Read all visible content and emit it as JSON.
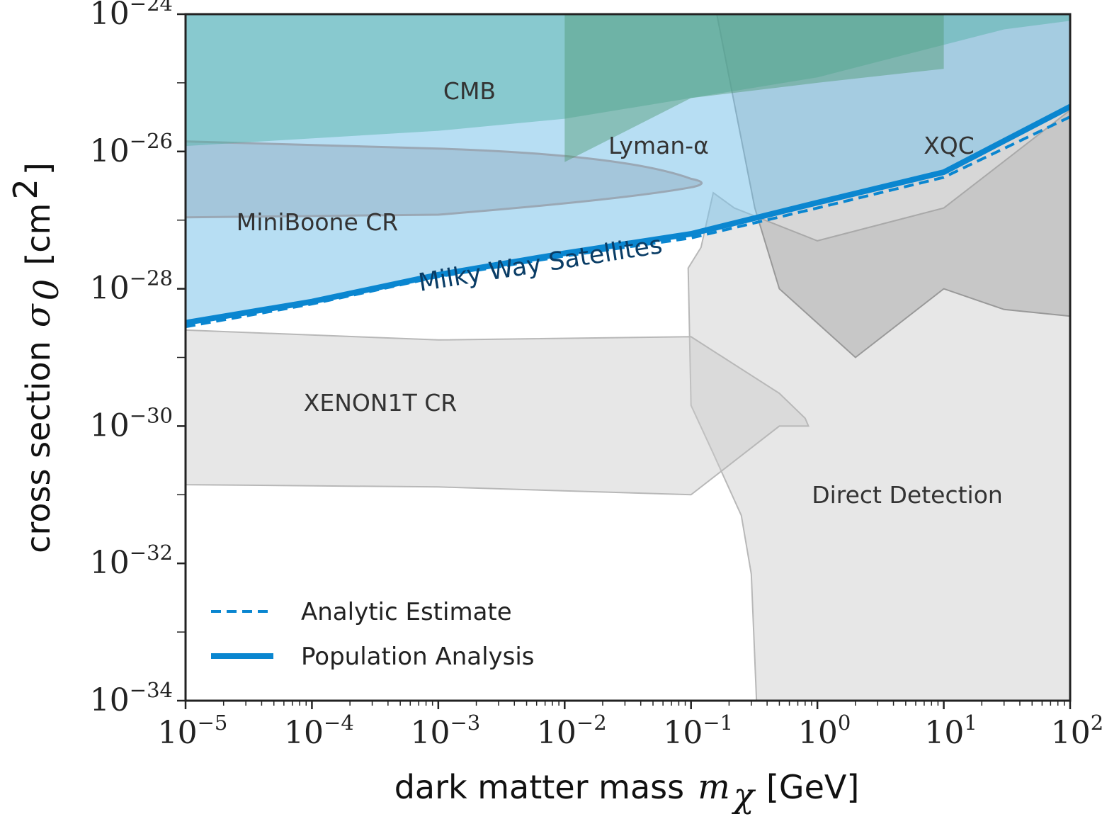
{
  "chart_data": {
    "type": "area",
    "x_scale": "log",
    "y_scale": "log",
    "xlim": [
      1e-05,
      100
    ],
    "ylim": [
      1e-34,
      1e-24
    ],
    "xlabel": "dark matter mass",
    "xlabel_symbol": "m",
    "xlabel_subscript": "χ",
    "xlabel_unit": "[GeV]",
    "ylabel": "cross section",
    "ylabel_symbol": "σ",
    "ylabel_subscript": "0",
    "ylabel_unit": "[cm",
    "ylabel_unit_exp": "2",
    "ylabel_unit_close": "]",
    "x_ticks": [
      {
        "base": "10",
        "exp": "−5",
        "value": 1e-05
      },
      {
        "base": "10",
        "exp": "−4",
        "value": 0.0001
      },
      {
        "base": "10",
        "exp": "−3",
        "value": 0.001
      },
      {
        "base": "10",
        "exp": "−2",
        "value": 0.01
      },
      {
        "base": "10",
        "exp": "−1",
        "value": 0.1
      },
      {
        "base": "10",
        "exp": "0",
        "value": 1
      },
      {
        "base": "10",
        "exp": "1",
        "value": 10
      },
      {
        "base": "10",
        "exp": "2",
        "value": 100
      }
    ],
    "y_ticks": [
      {
        "base": "10",
        "exp": "−24",
        "value": 1e-24
      },
      {
        "base": "10",
        "exp": "−26",
        "value": 1e-26
      },
      {
        "base": "10",
        "exp": "−28",
        "value": 1e-28
      },
      {
        "base": "10",
        "exp": "−30",
        "value": 1e-30
      },
      {
        "base": "10",
        "exp": "−32",
        "value": 1e-32
      },
      {
        "base": "10",
        "exp": "−34",
        "value": 1e-34
      }
    ],
    "regions": [
      {
        "name": "Direct Detection",
        "color": "#d0d0d0",
        "points": [
          [
            0.095,
            2e-28
          ],
          [
            0.12,
            4e-28
          ],
          [
            0.15,
            2.5e-27
          ],
          [
            0.22,
            1.5e-27
          ],
          [
            1,
            5e-28
          ],
          [
            10,
            1.5e-27
          ],
          [
            100,
            4e-26
          ],
          [
            100,
            1e-34
          ],
          [
            0.33,
            1e-34
          ],
          [
            0.3,
            7e-33
          ],
          [
            0.25,
            5e-32
          ],
          [
            0.15,
            4e-31
          ],
          [
            0.1,
            2e-30
          ]
        ]
      },
      {
        "name": "XENON1T CR",
        "color": "#d0d0d0",
        "points": [
          [
            1e-05,
            2.5e-29
          ],
          [
            0.001,
            1.8e-29
          ],
          [
            0.1,
            2e-29
          ],
          [
            0.5,
            3e-30
          ],
          [
            0.8,
            1.3e-30
          ],
          [
            0.85,
            1e-30
          ],
          [
            0.5,
            1e-30
          ],
          [
            0.1,
            1e-31
          ],
          [
            0.001,
            1.3e-31
          ],
          [
            1e-05,
            1.4e-31
          ]
        ]
      },
      {
        "name": "XQC",
        "color": "#8a8a8a",
        "points": [
          [
            0.16,
            1e-24
          ],
          [
            0.01,
            1e-24
          ],
          [
            0.01,
            1e-24
          ],
          [
            0.16,
            1e-24
          ],
          [
            100,
            1e-24
          ],
          [
            100,
            4e-29
          ],
          [
            30,
            5e-29
          ],
          [
            10,
            1e-28
          ],
          [
            2,
            1e-29
          ],
          [
            0.5,
            1e-28
          ],
          [
            0.32,
            1.5e-27
          ]
        ]
      },
      {
        "name": "Milky Way Satellites",
        "color": "#6fbce8",
        "points": [
          [
            1e-05,
            1e-24
          ],
          [
            100,
            1e-24
          ],
          [
            100,
            4.5e-26
          ],
          [
            10,
            5e-27
          ],
          [
            1,
            1.8e-27
          ],
          [
            0.1,
            6.3e-28
          ],
          [
            0.001,
            1.6e-28
          ],
          [
            1e-05,
            3.2e-29
          ]
        ]
      },
      {
        "name": "MiniBoone CR",
        "color": "#8fa9bf",
        "points": [
          [
            1e-05,
            1.4e-26
          ],
          [
            0.001,
            1.1e-26
          ],
          [
            0.03,
            9e-27
          ],
          [
            0.1,
            4e-27
          ],
          [
            0.1,
            3e-27
          ],
          [
            0.03,
            2e-27
          ],
          [
            0.001,
            1.2e-27
          ],
          [
            1e-05,
            1.1e-27
          ]
        ]
      },
      {
        "name": "CMB",
        "color": "#4ab3a4",
        "points": [
          [
            1e-05,
            1e-24
          ],
          [
            100,
            1e-24
          ],
          [
            100,
            8e-25
          ],
          [
            30,
            6e-25
          ],
          [
            1,
            1.2e-25
          ],
          [
            0.1,
            6e-26
          ],
          [
            0.01,
            3e-26
          ],
          [
            0.001,
            2e-26
          ],
          [
            1e-05,
            1.2e-26
          ]
        ]
      },
      {
        "name": "Lyman-α",
        "color": "#5a9e7a",
        "points": [
          [
            0.01,
            1e-24
          ],
          [
            10,
            1e-24
          ],
          [
            10,
            1.6e-25
          ],
          [
            1,
            1e-25
          ],
          [
            0.1,
            6e-26
          ],
          [
            0.01,
            7e-27
          ]
        ]
      }
    ],
    "series": [
      {
        "name": "Population Analysis",
        "style": "solid",
        "color": "#0a86d0",
        "x": [
          1e-05,
          0.0001,
          0.001,
          0.01,
          0.1,
          1,
          10,
          100
        ],
        "y": [
          3.2e-29,
          6.5e-29,
          1.6e-28,
          3.3e-28,
          6.3e-28,
          1.8e-27,
          5e-27,
          4.5e-26
        ]
      },
      {
        "name": "Analytic Estimate",
        "style": "dashed",
        "color": "#0a86d0",
        "x": [
          1e-05,
          0.0001,
          0.001,
          0.01,
          0.1,
          1,
          10,
          100
        ],
        "y": [
          2.8e-29,
          6e-29,
          1.5e-28,
          3e-28,
          5.5e-28,
          1.5e-27,
          4.2e-27,
          3.2e-26
        ]
      }
    ],
    "region_labels": {
      "cmb": "CMB",
      "lyman": "Lyman-α",
      "xqc": "XQC",
      "miniboone": "MiniBoone CR",
      "mws": "Milky Way Satellites",
      "xenon": "XENON1T CR",
      "direct": "Direct Detection"
    },
    "legend": {
      "position": "lower-left",
      "entries": [
        "Analytic Estimate",
        "Population Analysis"
      ]
    }
  }
}
